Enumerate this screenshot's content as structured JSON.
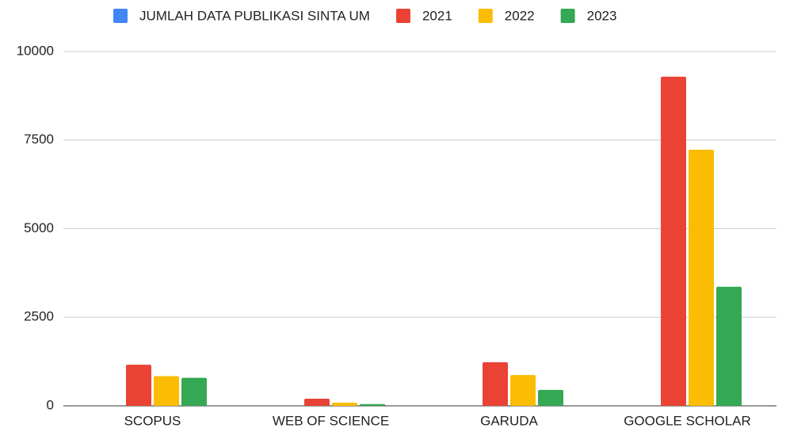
{
  "chart_data": {
    "type": "bar",
    "categories": [
      "SCOPUS",
      "WEB OF SCIENCE",
      "GARUDA",
      "GOOGLE SCHOLAR"
    ],
    "series": [
      {
        "name": "JUMLAH DATA PUBLIKASI SINTA UM",
        "color": "#4285f4",
        "values": [
          null,
          null,
          null,
          null
        ]
      },
      {
        "name": "2021",
        "color": "#ea4335",
        "values": [
          1160,
          200,
          1230,
          9290
        ]
      },
      {
        "name": "2022",
        "color": "#fbbc04",
        "values": [
          840,
          90,
          870,
          7230
        ]
      },
      {
        "name": "2023",
        "color": "#34a853",
        "values": [
          790,
          50,
          450,
          3360
        ]
      }
    ],
    "ylim": [
      0,
      10000
    ],
    "yticks": [
      0,
      2500,
      5000,
      7500,
      10000
    ],
    "grid": true,
    "legend": "top"
  }
}
